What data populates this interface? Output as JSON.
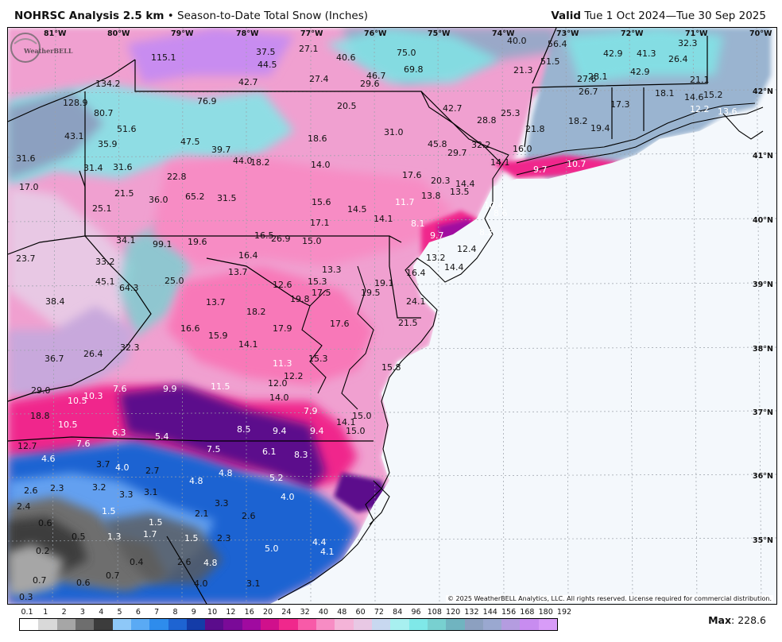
{
  "header": {
    "title": "NOHRSC Analysis 2.5 km",
    "separator": "•",
    "subtitle": "Season-to-Date Total Snow (Inches)",
    "valid_label": "Valid",
    "valid_range": "Tue 1 Oct 2024—Tue 30 Sep 2025"
  },
  "axes": {
    "longitudes": [
      "81°W",
      "80°W",
      "79°W",
      "78°W",
      "77°W",
      "76°W",
      "75°W",
      "74°W",
      "73°W",
      "72°W",
      "71°W",
      "70°W"
    ],
    "latitudes": [
      "42°N",
      "41°N",
      "40°N",
      "39°N",
      "38°N",
      "37°N",
      "36°N",
      "35°N"
    ]
  },
  "colors": {
    "ocean": "#f4f8fc",
    "dark_purple": "#5b0c8c",
    "magenta": "#f0288c",
    "pink": "#f78cc4",
    "light_pink": "#e8b4dc",
    "cyan": "#7fe8e8",
    "steel": "#8ca0c0",
    "lavender": "#c88cf0",
    "blue": "#1e64d2",
    "light_blue": "#64a0f0",
    "gray": "#7a7a7a",
    "dark_gray": "#3c3c3c"
  },
  "station_values": [
    {
      "v": "115.1",
      "c": "b"
    },
    {
      "v": "134.2",
      "c": "b"
    },
    {
      "v": "128.9",
      "c": "b"
    },
    {
      "v": "80.7",
      "c": "b"
    },
    {
      "v": "51.6",
      "c": "b"
    },
    {
      "v": "43.1",
      "c": "b"
    },
    {
      "v": "35.9",
      "c": "b"
    },
    {
      "v": "31.6",
      "c": "b"
    },
    {
      "v": "31.4",
      "c": "b"
    },
    {
      "v": "31.6",
      "c": "b"
    },
    {
      "v": "17.0",
      "c": "b"
    },
    {
      "v": "21.5",
      "c": "b"
    },
    {
      "v": "25.1",
      "c": "b"
    },
    {
      "v": "22.8",
      "c": "b"
    },
    {
      "v": "36.0",
      "c": "b"
    },
    {
      "v": "65.2",
      "c": "b"
    },
    {
      "v": "31.5",
      "c": "b"
    },
    {
      "v": "47.5",
      "c": "b"
    },
    {
      "v": "39.7",
      "c": "b"
    },
    {
      "v": "76.9",
      "c": "b"
    },
    {
      "v": "37.5",
      "c": "b"
    },
    {
      "v": "44.5",
      "c": "b"
    },
    {
      "v": "42.7",
      "c": "b"
    },
    {
      "v": "27.1",
      "c": "b"
    },
    {
      "v": "40.6",
      "c": "b"
    },
    {
      "v": "27.4",
      "c": "b"
    },
    {
      "v": "46.7",
      "c": "b"
    },
    {
      "v": "29.6",
      "c": "b"
    },
    {
      "v": "75.0",
      "c": "b"
    },
    {
      "v": "69.8",
      "c": "b"
    },
    {
      "v": "40.0",
      "c": "b"
    },
    {
      "v": "56.4",
      "c": "b"
    },
    {
      "v": "51.5",
      "c": "b"
    },
    {
      "v": "21.3",
      "c": "b"
    },
    {
      "v": "32.3",
      "c": "b"
    },
    {
      "v": "42.9",
      "c": "b"
    },
    {
      "v": "41.3",
      "c": "b"
    },
    {
      "v": "26.4",
      "c": "b"
    },
    {
      "v": "27.6",
      "c": "b"
    },
    {
      "v": "28.1",
      "c": "b"
    },
    {
      "v": "42.9",
      "c": "b"
    },
    {
      "v": "21.1",
      "c": "b"
    },
    {
      "v": "26.7",
      "c": "b"
    },
    {
      "v": "18.1",
      "c": "b"
    },
    {
      "v": "17.3",
      "c": "b"
    },
    {
      "v": "14.6",
      "c": "b"
    },
    {
      "v": "15.2",
      "c": "b"
    },
    {
      "v": "12.2",
      "c": "w"
    },
    {
      "v": "13.6",
      "c": "w"
    },
    {
      "v": "20.5",
      "c": "b"
    },
    {
      "v": "42.7",
      "c": "b"
    },
    {
      "v": "28.8",
      "c": "b"
    },
    {
      "v": "25.3",
      "c": "b"
    },
    {
      "v": "21.8",
      "c": "b"
    },
    {
      "v": "18.2",
      "c": "b"
    },
    {
      "v": "19.4",
      "c": "b"
    },
    {
      "v": "18.6",
      "c": "b"
    },
    {
      "v": "31.0",
      "c": "b"
    },
    {
      "v": "45.8",
      "c": "b"
    },
    {
      "v": "29.7",
      "c": "b"
    },
    {
      "v": "32.2",
      "c": "b"
    },
    {
      "v": "16.0",
      "c": "b"
    },
    {
      "v": "14.1",
      "c": "b"
    },
    {
      "v": "9.7",
      "c": "w"
    },
    {
      "v": "10.7",
      "c": "w"
    },
    {
      "v": "44.0",
      "c": "b"
    },
    {
      "v": "18.2",
      "c": "b"
    },
    {
      "v": "14.0",
      "c": "b"
    },
    {
      "v": "17.6",
      "c": "b"
    },
    {
      "v": "20.3",
      "c": "b"
    },
    {
      "v": "14.4",
      "c": "b"
    },
    {
      "v": "13.5",
      "c": "b"
    },
    {
      "v": "13.8",
      "c": "b"
    },
    {
      "v": "10.4",
      "c": "w"
    },
    {
      "v": "8.6",
      "c": "w"
    },
    {
      "v": "15.6",
      "c": "b"
    },
    {
      "v": "14.5",
      "c": "b"
    },
    {
      "v": "11.7",
      "c": "w"
    },
    {
      "v": "17.1",
      "c": "b"
    },
    {
      "v": "14.1",
      "c": "b"
    },
    {
      "v": "8.1",
      "c": "w"
    },
    {
      "v": "9.7",
      "c": "w"
    },
    {
      "v": "8.2",
      "c": "w"
    },
    {
      "v": "34.1",
      "c": "b"
    },
    {
      "v": "99.1",
      "c": "b"
    },
    {
      "v": "19.6",
      "c": "b"
    },
    {
      "v": "16.5",
      "c": "b"
    },
    {
      "v": "26.9",
      "c": "b"
    },
    {
      "v": "15.0",
      "c": "b"
    },
    {
      "v": "23.7",
      "c": "b"
    },
    {
      "v": "33.2",
      "c": "b"
    },
    {
      "v": "16.4",
      "c": "b"
    },
    {
      "v": "13.2",
      "c": "b"
    },
    {
      "v": "12.4",
      "c": "b"
    },
    {
      "v": "14.4",
      "c": "b"
    },
    {
      "v": "45.1",
      "c": "b"
    },
    {
      "v": "64.3",
      "c": "b"
    },
    {
      "v": "25.0",
      "c": "b"
    },
    {
      "v": "13.7",
      "c": "b"
    },
    {
      "v": "13.3",
      "c": "b"
    },
    {
      "v": "16.4",
      "c": "b"
    },
    {
      "v": "19.1",
      "c": "b"
    },
    {
      "v": "12.6",
      "c": "b"
    },
    {
      "v": "15.3",
      "c": "b"
    },
    {
      "v": "17.5",
      "c": "b"
    },
    {
      "v": "19.5",
      "c": "b"
    },
    {
      "v": "19.8",
      "c": "b"
    },
    {
      "v": "38.4",
      "c": "b"
    },
    {
      "v": "13.7",
      "c": "b"
    },
    {
      "v": "18.2",
      "c": "b"
    },
    {
      "v": "24.1",
      "c": "b"
    },
    {
      "v": "16.6",
      "c": "b"
    },
    {
      "v": "15.9",
      "c": "b"
    },
    {
      "v": "17.9",
      "c": "b"
    },
    {
      "v": "17.6",
      "c": "b"
    },
    {
      "v": "21.5",
      "c": "b"
    },
    {
      "v": "14.1",
      "c": "b"
    },
    {
      "v": "36.7",
      "c": "b"
    },
    {
      "v": "26.4",
      "c": "b"
    },
    {
      "v": "32.3",
      "c": "b"
    },
    {
      "v": "15.3",
      "c": "b"
    },
    {
      "v": "11.3",
      "c": "w"
    },
    {
      "v": "15.8",
      "c": "b"
    },
    {
      "v": "12.2",
      "c": "b"
    },
    {
      "v": "12.0",
      "c": "b"
    },
    {
      "v": "29.0",
      "c": "b"
    },
    {
      "v": "10.5",
      "c": "w"
    },
    {
      "v": "10.3",
      "c": "w"
    },
    {
      "v": "7.6",
      "c": "w"
    },
    {
      "v": "9.9",
      "c": "w"
    },
    {
      "v": "11.5",
      "c": "w"
    },
    {
      "v": "14.0",
      "c": "b"
    },
    {
      "v": "18.8",
      "c": "b"
    },
    {
      "v": "10.5",
      "c": "w"
    },
    {
      "v": "7.9",
      "c": "w"
    },
    {
      "v": "15.0",
      "c": "b"
    },
    {
      "v": "14.1",
      "c": "b"
    },
    {
      "v": "15.0",
      "c": "b"
    },
    {
      "v": "6.3",
      "c": "w"
    },
    {
      "v": "5.4",
      "c": "w"
    },
    {
      "v": "8.5",
      "c": "w"
    },
    {
      "v": "9.4",
      "c": "w"
    },
    {
      "v": "9.4",
      "c": "w"
    },
    {
      "v": "12.7",
      "c": "b"
    },
    {
      "v": "7.6",
      "c": "w"
    },
    {
      "v": "4.6",
      "c": "w"
    },
    {
      "v": "7.5",
      "c": "w"
    },
    {
      "v": "6.1",
      "c": "w"
    },
    {
      "v": "8.3",
      "c": "w"
    },
    {
      "v": "3.7",
      "c": "b"
    },
    {
      "v": "4.0",
      "c": "w"
    },
    {
      "v": "2.7",
      "c": "b"
    },
    {
      "v": "4.8",
      "c": "w"
    },
    {
      "v": "4.8",
      "c": "w"
    },
    {
      "v": "5.2",
      "c": "w"
    },
    {
      "v": "2.6",
      "c": "b"
    },
    {
      "v": "2.3",
      "c": "b"
    },
    {
      "v": "3.2",
      "c": "b"
    },
    {
      "v": "3.3",
      "c": "b"
    },
    {
      "v": "3.1",
      "c": "b"
    },
    {
      "v": "4.0",
      "c": "w"
    },
    {
      "v": "2.4",
      "c": "b"
    },
    {
      "v": "1.5",
      "c": "w"
    },
    {
      "v": "3.3",
      "c": "b"
    },
    {
      "v": "2.1",
      "c": "b"
    },
    {
      "v": "2.6",
      "c": "b"
    },
    {
      "v": "0.6",
      "c": "b"
    },
    {
      "v": "1.5",
      "c": "w"
    },
    {
      "v": "0.5",
      "c": "b"
    },
    {
      "v": "1.3",
      "c": "w"
    },
    {
      "v": "1.7",
      "c": "w"
    },
    {
      "v": "1.5",
      "c": "w"
    },
    {
      "v": "2.3",
      "c": "b"
    },
    {
      "v": "4.4",
      "c": "w"
    },
    {
      "v": "0.2",
      "c": "b"
    },
    {
      "v": "0.4",
      "c": "b"
    },
    {
      "v": "5.0",
      "c": "w"
    },
    {
      "v": "4.1",
      "c": "w"
    },
    {
      "v": "0.7",
      "c": "b"
    },
    {
      "v": "2.6",
      "c": "b"
    },
    {
      "v": "4.8",
      "c": "w"
    },
    {
      "v": "0.7",
      "c": "b"
    },
    {
      "v": "0.6",
      "c": "b"
    },
    {
      "v": "4.0",
      "c": "b"
    },
    {
      "v": "3.1",
      "c": "b"
    },
    {
      "v": "0.3",
      "c": "b"
    }
  ],
  "legend": {
    "ticks": [
      "0.1",
      "1",
      "2",
      "3",
      "4",
      "5",
      "6",
      "7",
      "8",
      "9",
      "10",
      "12",
      "16",
      "20",
      "24",
      "32",
      "40",
      "48",
      "60",
      "72",
      "84",
      "96",
      "108",
      "120",
      "132",
      "144",
      "156",
      "168",
      "180",
      "192"
    ],
    "colors": [
      "#ffffff",
      "#d9d9d9",
      "#a6a6a6",
      "#6e6e6e",
      "#3c3c3c",
      "#8ec8f8",
      "#5aaaf4",
      "#2e8cec",
      "#1e64d2",
      "#143ca8",
      "#5b0c8c",
      "#7a0a98",
      "#a00aa0",
      "#d0108c",
      "#f0288c",
      "#f85aa8",
      "#f78cc4",
      "#f4b4d8",
      "#e8c8e4",
      "#c8d8f0",
      "#a8f0f0",
      "#7fe8e8",
      "#78d0d0",
      "#70b4c0",
      "#8ca0c0",
      "#9aa8d0",
      "#b49ce0",
      "#c88cf0",
      "#d89cf8"
    ],
    "max_label": "Max",
    "max_value": ": 228.6"
  },
  "copyright": "© 2025 WeatherBELL Analytics, LLC. All rights reserved. License required for commercial distribution.",
  "logo_text": "WeatherBELL"
}
